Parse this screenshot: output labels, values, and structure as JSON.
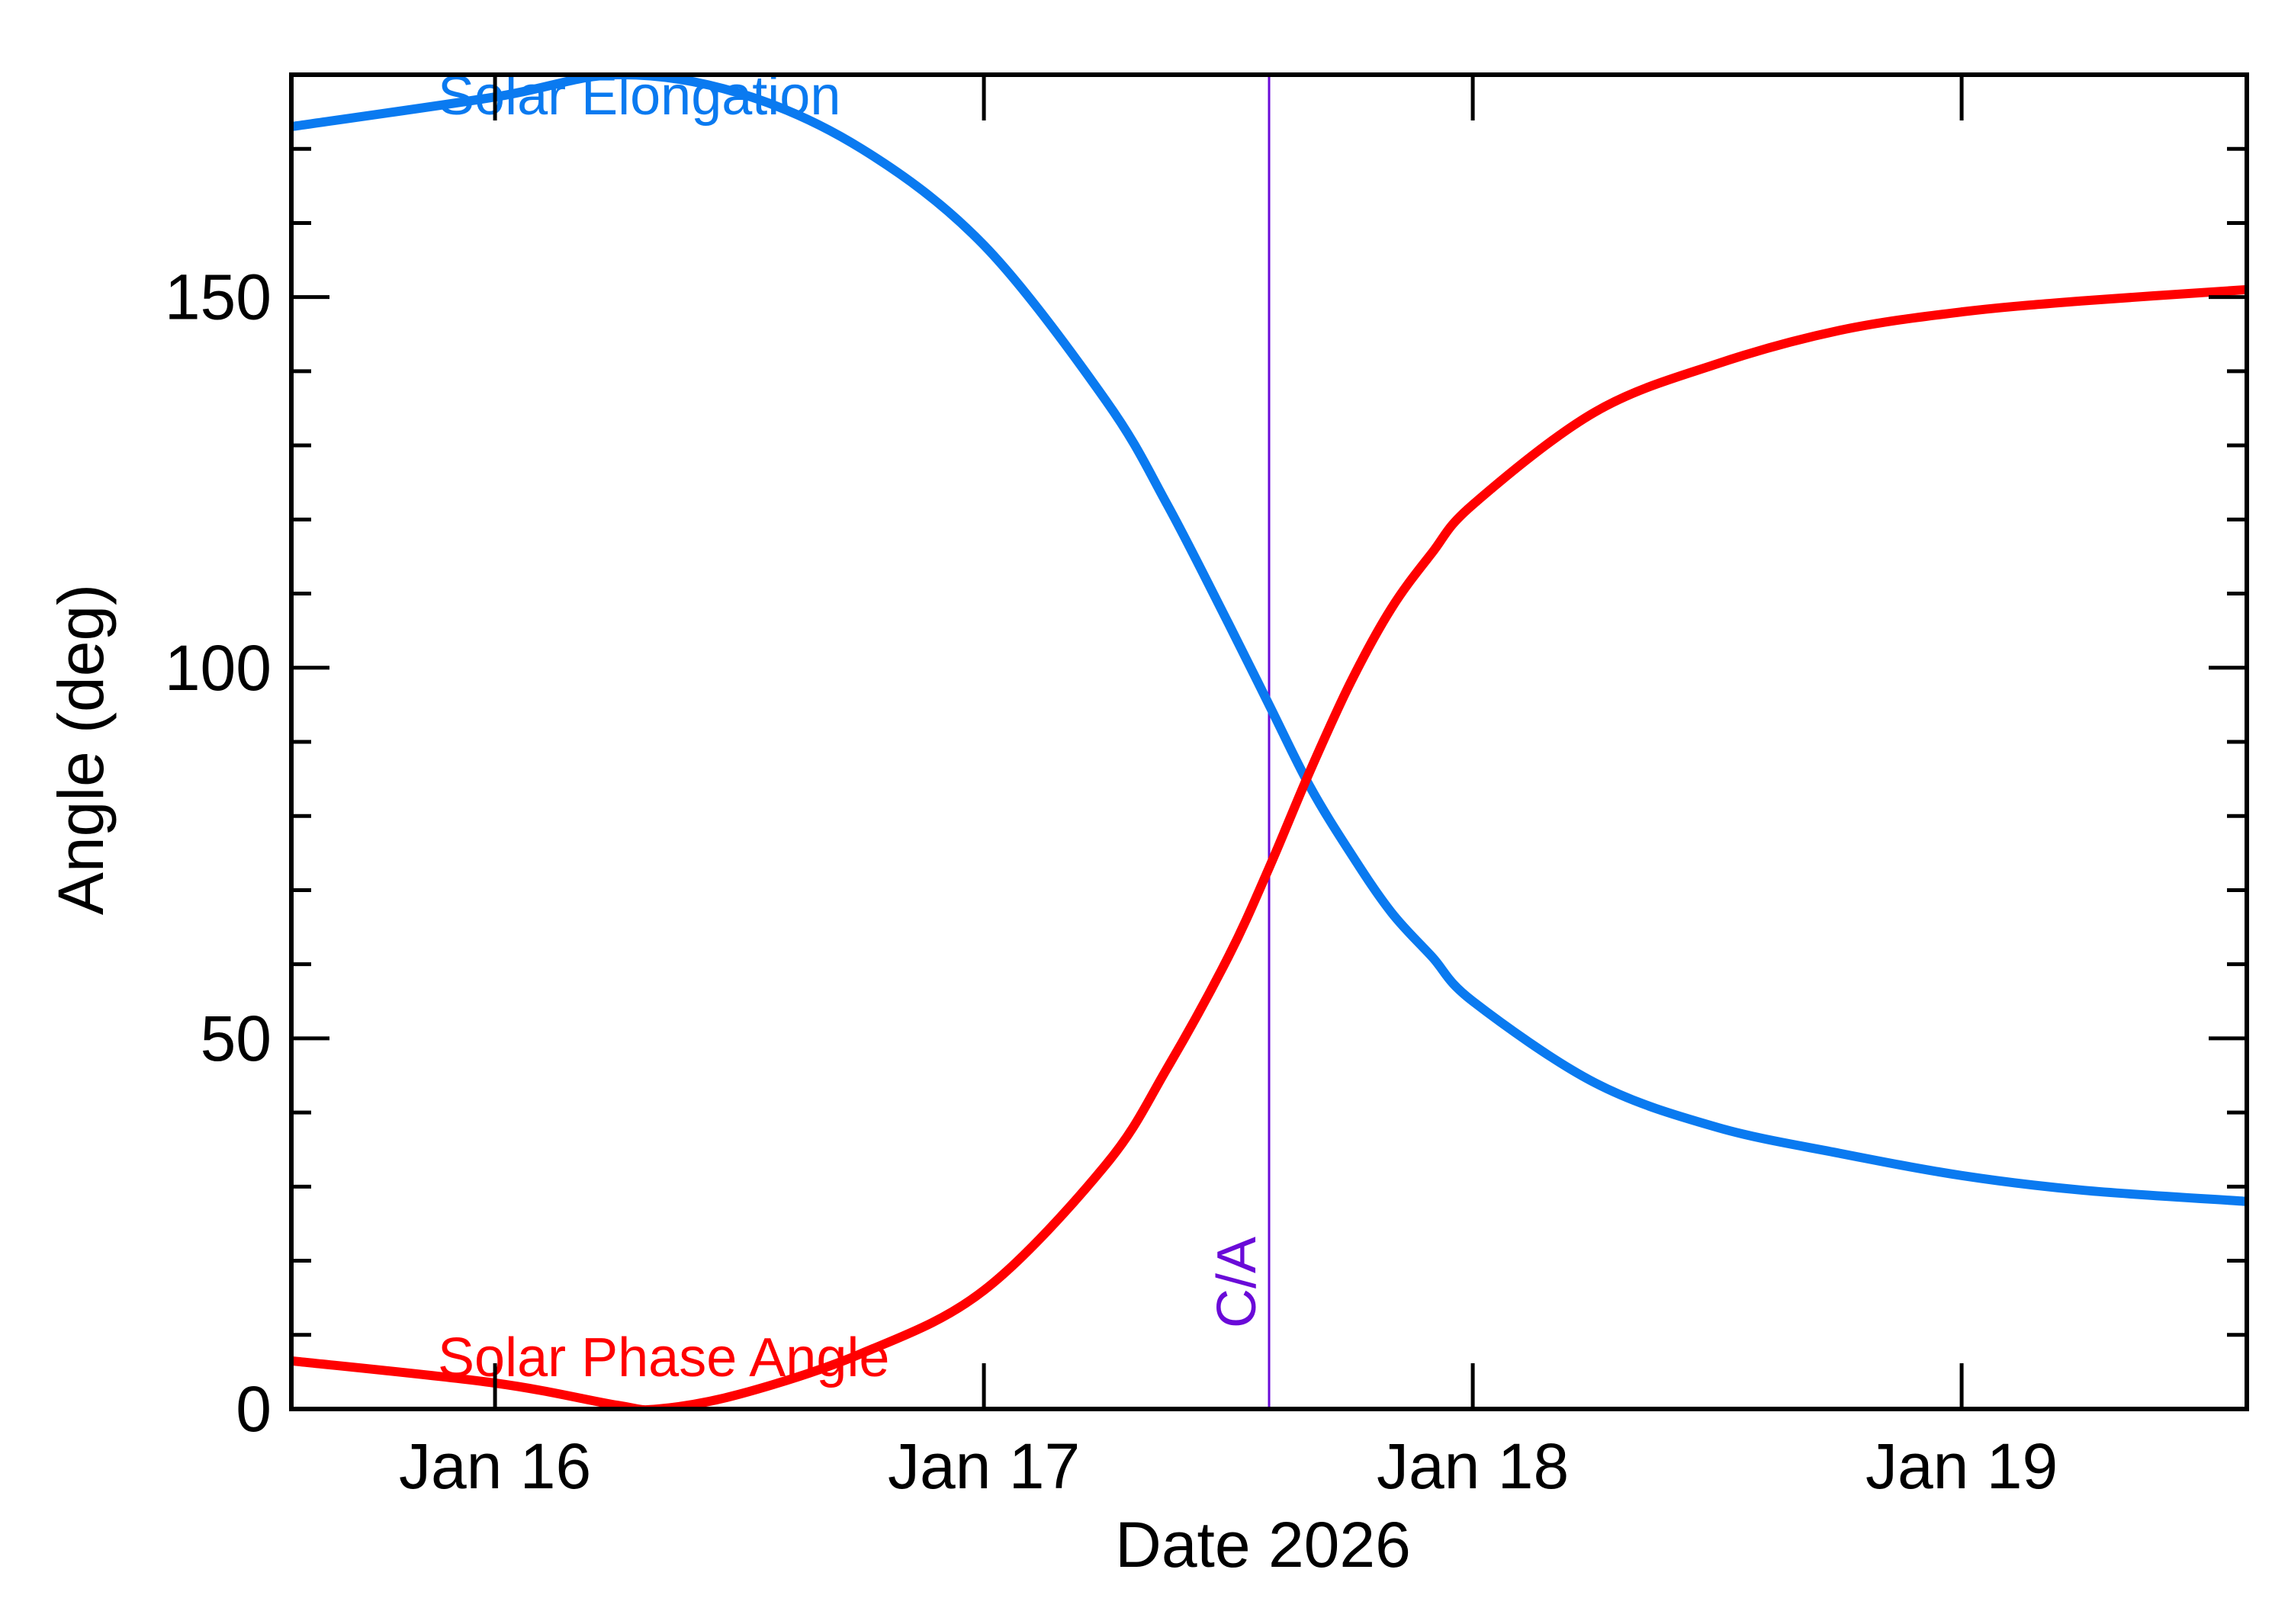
{
  "chart_data": {
    "type": "line",
    "title": "",
    "xlabel": "Date 2026",
    "ylabel": "Angle (deg)",
    "x_ticks": [
      "Jan 16",
      "Jan 17",
      "Jan 18",
      "Jan 19"
    ],
    "x_tick_values": [
      "2026-01-16",
      "2026-01-17",
      "2026-01-18",
      "2026-01-19"
    ],
    "xlim": [
      "2026-01-15 14:00",
      "2026-01-19 14:00"
    ],
    "y_ticks": [
      "0",
      "50",
      "100",
      "150"
    ],
    "y_tick_values": [
      0,
      50,
      100,
      150
    ],
    "ylim": [
      0,
      180
    ],
    "grid": false,
    "legend": "none (series labelled inline)",
    "series": [
      {
        "name": "Solar Elongation",
        "color": "#0a7af0",
        "x": [
          "2026-01-15 14:00",
          "2026-01-16 00:00",
          "2026-01-16 06:00",
          "2026-01-16 12:00",
          "2026-01-16 18:00",
          "2026-01-17 00:00",
          "2026-01-17 06:00",
          "2026-01-17 09:00",
          "2026-01-17 12:00",
          "2026-01-17 14:00",
          "2026-01-17 16:00",
          "2026-01-17 18:00",
          "2026-01-17 20:00",
          "2026-01-17 22:00",
          "2026-01-18 00:00",
          "2026-01-18 06:00",
          "2026-01-18 12:00",
          "2026-01-18 18:00",
          "2026-01-19 00:00",
          "2026-01-19 06:00",
          "2026-01-19 14:00"
        ],
        "y": [
          173,
          177,
          180,
          177.5,
          170,
          157,
          136,
          122,
          106,
          95,
          84,
          75,
          67,
          61,
          55,
          44,
          38,
          34.5,
          31.5,
          29.5,
          28
        ]
      },
      {
        "name": "Solar Phase Angle",
        "color": "#ff0000",
        "x": [
          "2026-01-15 14:00",
          "2026-01-16 00:00",
          "2026-01-16 06:00",
          "2026-01-16 08:00",
          "2026-01-16 12:00",
          "2026-01-16 18:00",
          "2026-01-17 00:00",
          "2026-01-17 06:00",
          "2026-01-17 09:00",
          "2026-01-17 12:00",
          "2026-01-17 14:00",
          "2026-01-17 16:00",
          "2026-01-17 18:00",
          "2026-01-17 20:00",
          "2026-01-17 22:00",
          "2026-01-18 00:00",
          "2026-01-18 06:00",
          "2026-01-18 12:00",
          "2026-01-18 18:00",
          "2026-01-19 00:00",
          "2026-01-19 06:00",
          "2026-01-19 14:00"
        ],
        "y": [
          6.5,
          3.5,
          0.5,
          0,
          2,
          7.5,
          16,
          33,
          46,
          61,
          73,
          86,
          98,
          108,
          115.5,
          122,
          134.5,
          141,
          145.5,
          148,
          149.5,
          151
        ]
      }
    ],
    "annotations": [
      {
        "label": "C/A",
        "x": "2026-01-17 14:00",
        "color": "#6a0ad8",
        "style": "vertical line"
      }
    ]
  }
}
